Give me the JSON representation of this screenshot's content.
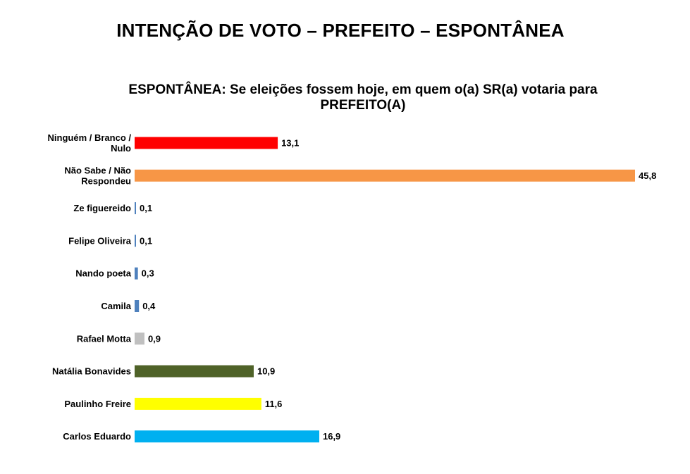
{
  "page": {
    "title": "INTENÇÃO DE VOTO – PREFEITO – ESPONTÂNEA"
  },
  "chart_data": {
    "type": "bar",
    "orientation": "horizontal",
    "title": "ESPONTÂNEA: Se eleições fossem hoje, em quem o(a) SR(a) votaria para PREFEITO(A)",
    "xlabel": "",
    "ylabel": "",
    "xlim": [
      0,
      45.8
    ],
    "grid": false,
    "legend": "none",
    "categories": [
      "Ninguém / Branco / Nulo",
      "Não Sabe / Não Respondeu",
      "Ze figuereido",
      "Felipe Oliveira",
      "Nando poeta",
      "Camila",
      "Rafael Motta",
      "Natália Bonavides",
      "Paulinho Freire",
      "Carlos Eduardo"
    ],
    "values": [
      13.1,
      45.8,
      0.1,
      0.1,
      0.3,
      0.4,
      0.9,
      10.9,
      11.6,
      16.9
    ],
    "value_labels": [
      "13,1",
      "45,8",
      "0,1",
      "0,1",
      "0,3",
      "0,4",
      "0,9",
      "10,9",
      "11,6",
      "16,9"
    ],
    "colors": [
      "#ff0000",
      "#f79646",
      "#4f81bd",
      "#4f81bd",
      "#4f81bd",
      "#4f81bd",
      "#c0c0c0",
      "#4f6228",
      "#ffff00",
      "#00b0f0"
    ]
  }
}
